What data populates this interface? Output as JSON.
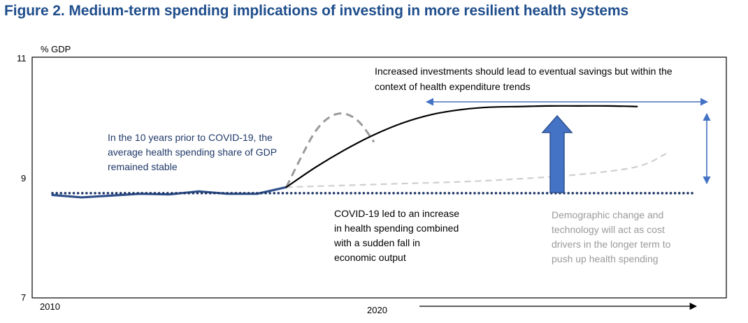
{
  "title": "Figure 2. Medium-term spending implications of investing in more resilient health systems",
  "colors": {
    "title": "#1f4e8c",
    "historic": "#2f4f8a",
    "baseline_dots": "#1f3868",
    "projection": "#000000",
    "covid_bump": "#9a9a9a",
    "demographic": "#cfcfcf",
    "arrow": "#4472c4",
    "arrow_border": "#2f528f",
    "annotation_stable": "#1f3868",
    "annotation_covid": "#000000",
    "annotation_demo": "#9a9a9a"
  },
  "chart_data": {
    "type": "line",
    "ylabel": "% GDP",
    "ylim": [
      7,
      11
    ],
    "yticks": [
      "11",
      "9",
      "7"
    ],
    "xlim": [
      2010,
      2032
    ],
    "xticks": [
      "2010",
      "2020"
    ],
    "series": [
      {
        "key": "historic",
        "style": "solid",
        "points": [
          [
            2010,
            8.71
          ],
          [
            2011,
            8.67
          ],
          [
            2012,
            8.7
          ],
          [
            2013,
            8.73
          ],
          [
            2014,
            8.72
          ],
          [
            2015,
            8.77
          ],
          [
            2016,
            8.73
          ],
          [
            2017,
            8.73
          ],
          [
            2018,
            8.84
          ]
        ]
      },
      {
        "key": "baseline",
        "style": "dotted",
        "points": [
          [
            2010,
            8.74
          ],
          [
            2032,
            8.74
          ]
        ]
      },
      {
        "key": "covid_bump",
        "style": "dashed",
        "points": [
          [
            2018,
            8.84
          ],
          [
            2018.5,
            9.33
          ],
          [
            2019,
            9.77
          ],
          [
            2019.5,
            10.01
          ],
          [
            2020,
            10.06
          ],
          [
            2020.5,
            9.92
          ],
          [
            2021,
            9.59
          ]
        ]
      },
      {
        "key": "projection",
        "style": "solid",
        "points": [
          [
            2018,
            8.84
          ],
          [
            2019,
            9.17
          ],
          [
            2020,
            9.46
          ],
          [
            2021,
            9.71
          ],
          [
            2022,
            9.91
          ],
          [
            2023,
            10.05
          ],
          [
            2024,
            10.13
          ],
          [
            2025,
            10.17
          ],
          [
            2026,
            10.18
          ],
          [
            2027,
            10.19
          ],
          [
            2028,
            10.19
          ],
          [
            2029,
            10.19
          ],
          [
            2030,
            10.18
          ]
        ]
      },
      {
        "key": "demographic",
        "style": "dashed",
        "points": [
          [
            2018,
            8.84
          ],
          [
            2020,
            8.87
          ],
          [
            2022,
            8.9
          ],
          [
            2024,
            8.93
          ],
          [
            2026,
            8.98
          ],
          [
            2028,
            9.05
          ],
          [
            2030,
            9.18
          ],
          [
            2031,
            9.4
          ]
        ]
      }
    ],
    "annotations": {
      "stable": [
        "In the 10 years prior to COVID-19, the",
        "average health spending share of GDP",
        "remained stable"
      ],
      "covid": [
        "COVID-19 led to an increase",
        "in health spending combined",
        "with a sudden fall in",
        "economic output"
      ],
      "demographic": [
        "Demographic change and",
        "technology will act as cost",
        "drivers in the longer term to",
        "push up health spending"
      ],
      "investments": [
        "Increased investments should lead to eventual savings but within the",
        "context of health expenditure trends"
      ]
    }
  }
}
